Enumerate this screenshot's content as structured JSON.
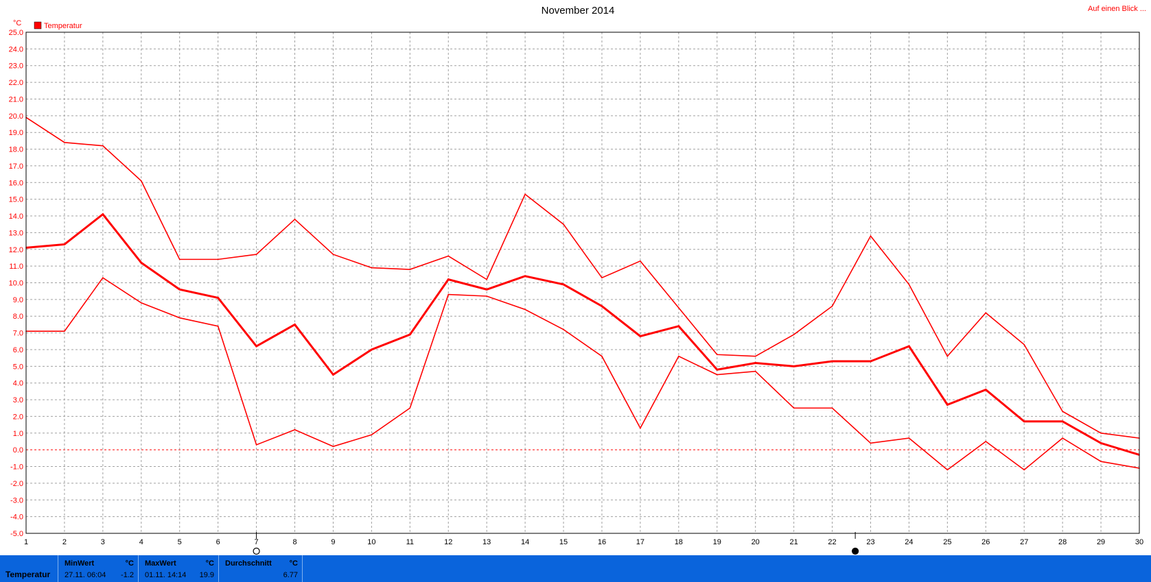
{
  "chart_data": {
    "type": "line",
    "title": "November 2014",
    "ylabel": "°C",
    "xlabel": "",
    "ylim": [
      -5.0,
      25.0
    ],
    "ytick_step": 1.0,
    "x": [
      1,
      2,
      3,
      4,
      5,
      6,
      7,
      8,
      9,
      10,
      11,
      12,
      13,
      14,
      15,
      16,
      17,
      18,
      19,
      20,
      21,
      22,
      23,
      24,
      25,
      26,
      27,
      28,
      29,
      30
    ],
    "legend": "Temperatur",
    "legend_position": "top-left",
    "grid": true,
    "series": [
      {
        "role": "max",
        "values": [
          19.9,
          18.4,
          18.2,
          16.1,
          11.4,
          11.4,
          11.7,
          13.8,
          11.7,
          10.9,
          10.8,
          11.6,
          10.2,
          15.3,
          13.5,
          10.3,
          11.3,
          8.5,
          5.7,
          5.6,
          6.9,
          8.6,
          12.8,
          9.9,
          5.6,
          8.2,
          6.3,
          2.3,
          1.0,
          0.7
        ]
      },
      {
        "role": "avg",
        "values": [
          12.1,
          12.3,
          14.1,
          11.2,
          9.6,
          9.1,
          6.2,
          7.5,
          4.5,
          6.0,
          6.9,
          10.2,
          9.6,
          10.4,
          9.9,
          8.6,
          6.8,
          7.4,
          4.8,
          5.2,
          5.0,
          5.3,
          5.3,
          6.2,
          2.7,
          3.6,
          1.7,
          1.7,
          0.4,
          -0.3
        ]
      },
      {
        "role": "min",
        "values": [
          7.1,
          7.1,
          10.3,
          8.8,
          7.9,
          7.4,
          0.3,
          1.2,
          0.2,
          0.9,
          2.5,
          9.3,
          9.2,
          8.4,
          7.2,
          5.6,
          1.3,
          5.6,
          4.5,
          4.7,
          2.5,
          2.5,
          0.4,
          0.7,
          -1.2,
          0.5,
          -1.2,
          0.7,
          -0.7,
          -1.1
        ]
      }
    ],
    "moon_markers": [
      {
        "x": 7,
        "phase": "full-moon-icon"
      },
      {
        "x": 22.6,
        "phase": "new-moon-icon"
      }
    ],
    "colors": {
      "series": "#ff0000",
      "axis_text": "#ff0000",
      "grid": "#a0a0a0",
      "zero_line": "#ff0000"
    }
  },
  "top_link": "Auf einen Blick ...",
  "footer": {
    "series_name": "Temperatur",
    "min_label": "MinWert",
    "min_unit": "°C",
    "min_time": "27.11.  06:04",
    "min_value": "-1.2",
    "max_label": "MaxWert",
    "max_unit": "°C",
    "max_time": "01.11.  14:14",
    "max_value": "19.9",
    "avg_label": "Durchschnitt",
    "avg_unit": "°C",
    "avg_value": "6.77",
    "bg_color": "#0a64dc"
  }
}
